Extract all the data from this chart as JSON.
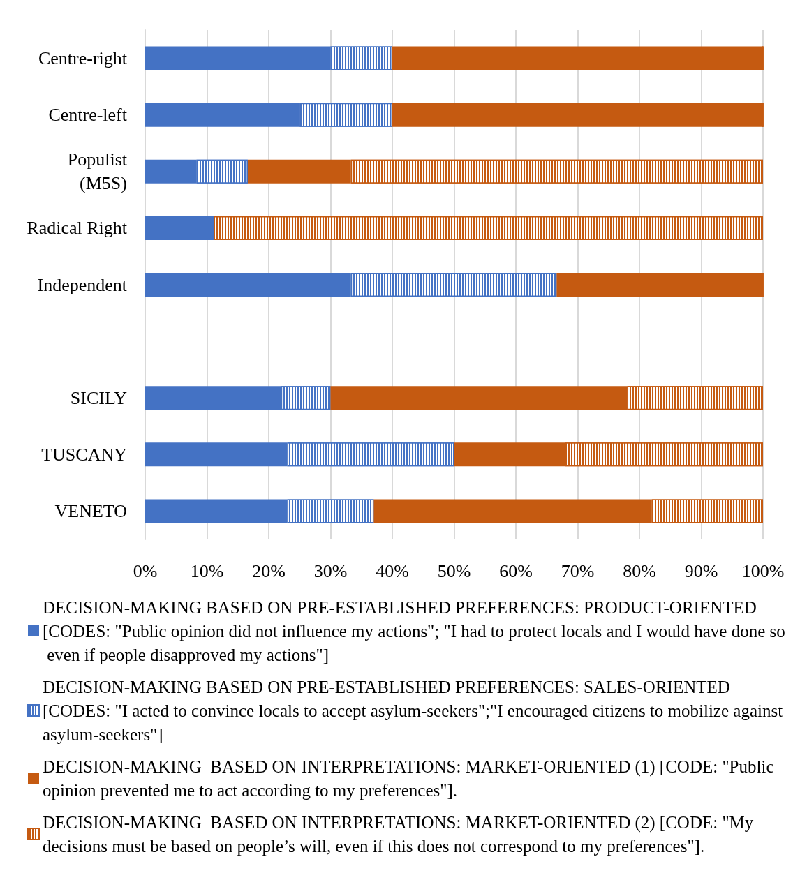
{
  "chart_data": {
    "type": "bar",
    "orientation": "horizontal",
    "stacked": true,
    "categories": [
      "Centre-right",
      "Centre-left",
      "Populist\n(M5S)",
      "Radical Right",
      "Independent",
      null,
      "SICILY",
      "TUSCANY",
      "VENETO"
    ],
    "series": [
      {
        "name": "DECISION-MAKING BASED ON PRE-ESTABLISHED PREFERENCES: PRODUCT-ORIENTED [CODES: \"Public opinion did not influence my actions\"; \"I had to protect locals and I would have done so even if people disapproved my actions\"]",
        "color": "#4472c4",
        "values": [
          30,
          25,
          8.3,
          11.1,
          33.3,
          null,
          22,
          23,
          23
        ]
      },
      {
        "name": "DECISION-MAKING BASED ON PRE-ESTABLISHED PREFERENCES: SALES-ORIENTED [CODES: \"I acted to convince locals to accept asylum-seekers\";\"I encouraged citizens to mobilize against asylum-seekers\"]",
        "color": "#4472c4",
        "values": [
          10,
          15,
          8.3,
          0,
          33.3,
          null,
          8,
          27,
          14
        ]
      },
      {
        "name": "DECISION-MAKING  BASED ON INTERPRETATIONS: MARKET-ORIENTED (1) [CODE: \"Public opinion prevented me to act according to my preferences\"].",
        "color": "#c55a11",
        "values": [
          60,
          60,
          16.7,
          0,
          33.4,
          null,
          48,
          18,
          45
        ]
      },
      {
        "name": "DECISION-MAKING  BASED ON INTERPRETATIONS: MARKET-ORIENTED (2) [CODE: \"My decisions must be based on people’s will, even if this does not correspond to my preferences\"].",
        "color": "#c55a11",
        "values": [
          0,
          0,
          66.7,
          88.9,
          0,
          null,
          22,
          32,
          18
        ]
      }
    ],
    "xlim": [
      0,
      100
    ],
    "xticks": [
      {
        "value": 0,
        "label": "0%"
      },
      {
        "value": 10,
        "label": "10%"
      },
      {
        "value": 20,
        "label": "20%"
      },
      {
        "value": 30,
        "label": "30%"
      },
      {
        "value": 40,
        "label": "40%"
      },
      {
        "value": 50,
        "label": "50%"
      },
      {
        "value": 60,
        "label": "60%"
      },
      {
        "value": 70,
        "label": "70%"
      },
      {
        "value": 80,
        "label": "80%"
      },
      {
        "value": 90,
        "label": "90%"
      },
      {
        "value": 100,
        "label": "100%"
      }
    ],
    "grid": "x",
    "legend": "bottom"
  }
}
